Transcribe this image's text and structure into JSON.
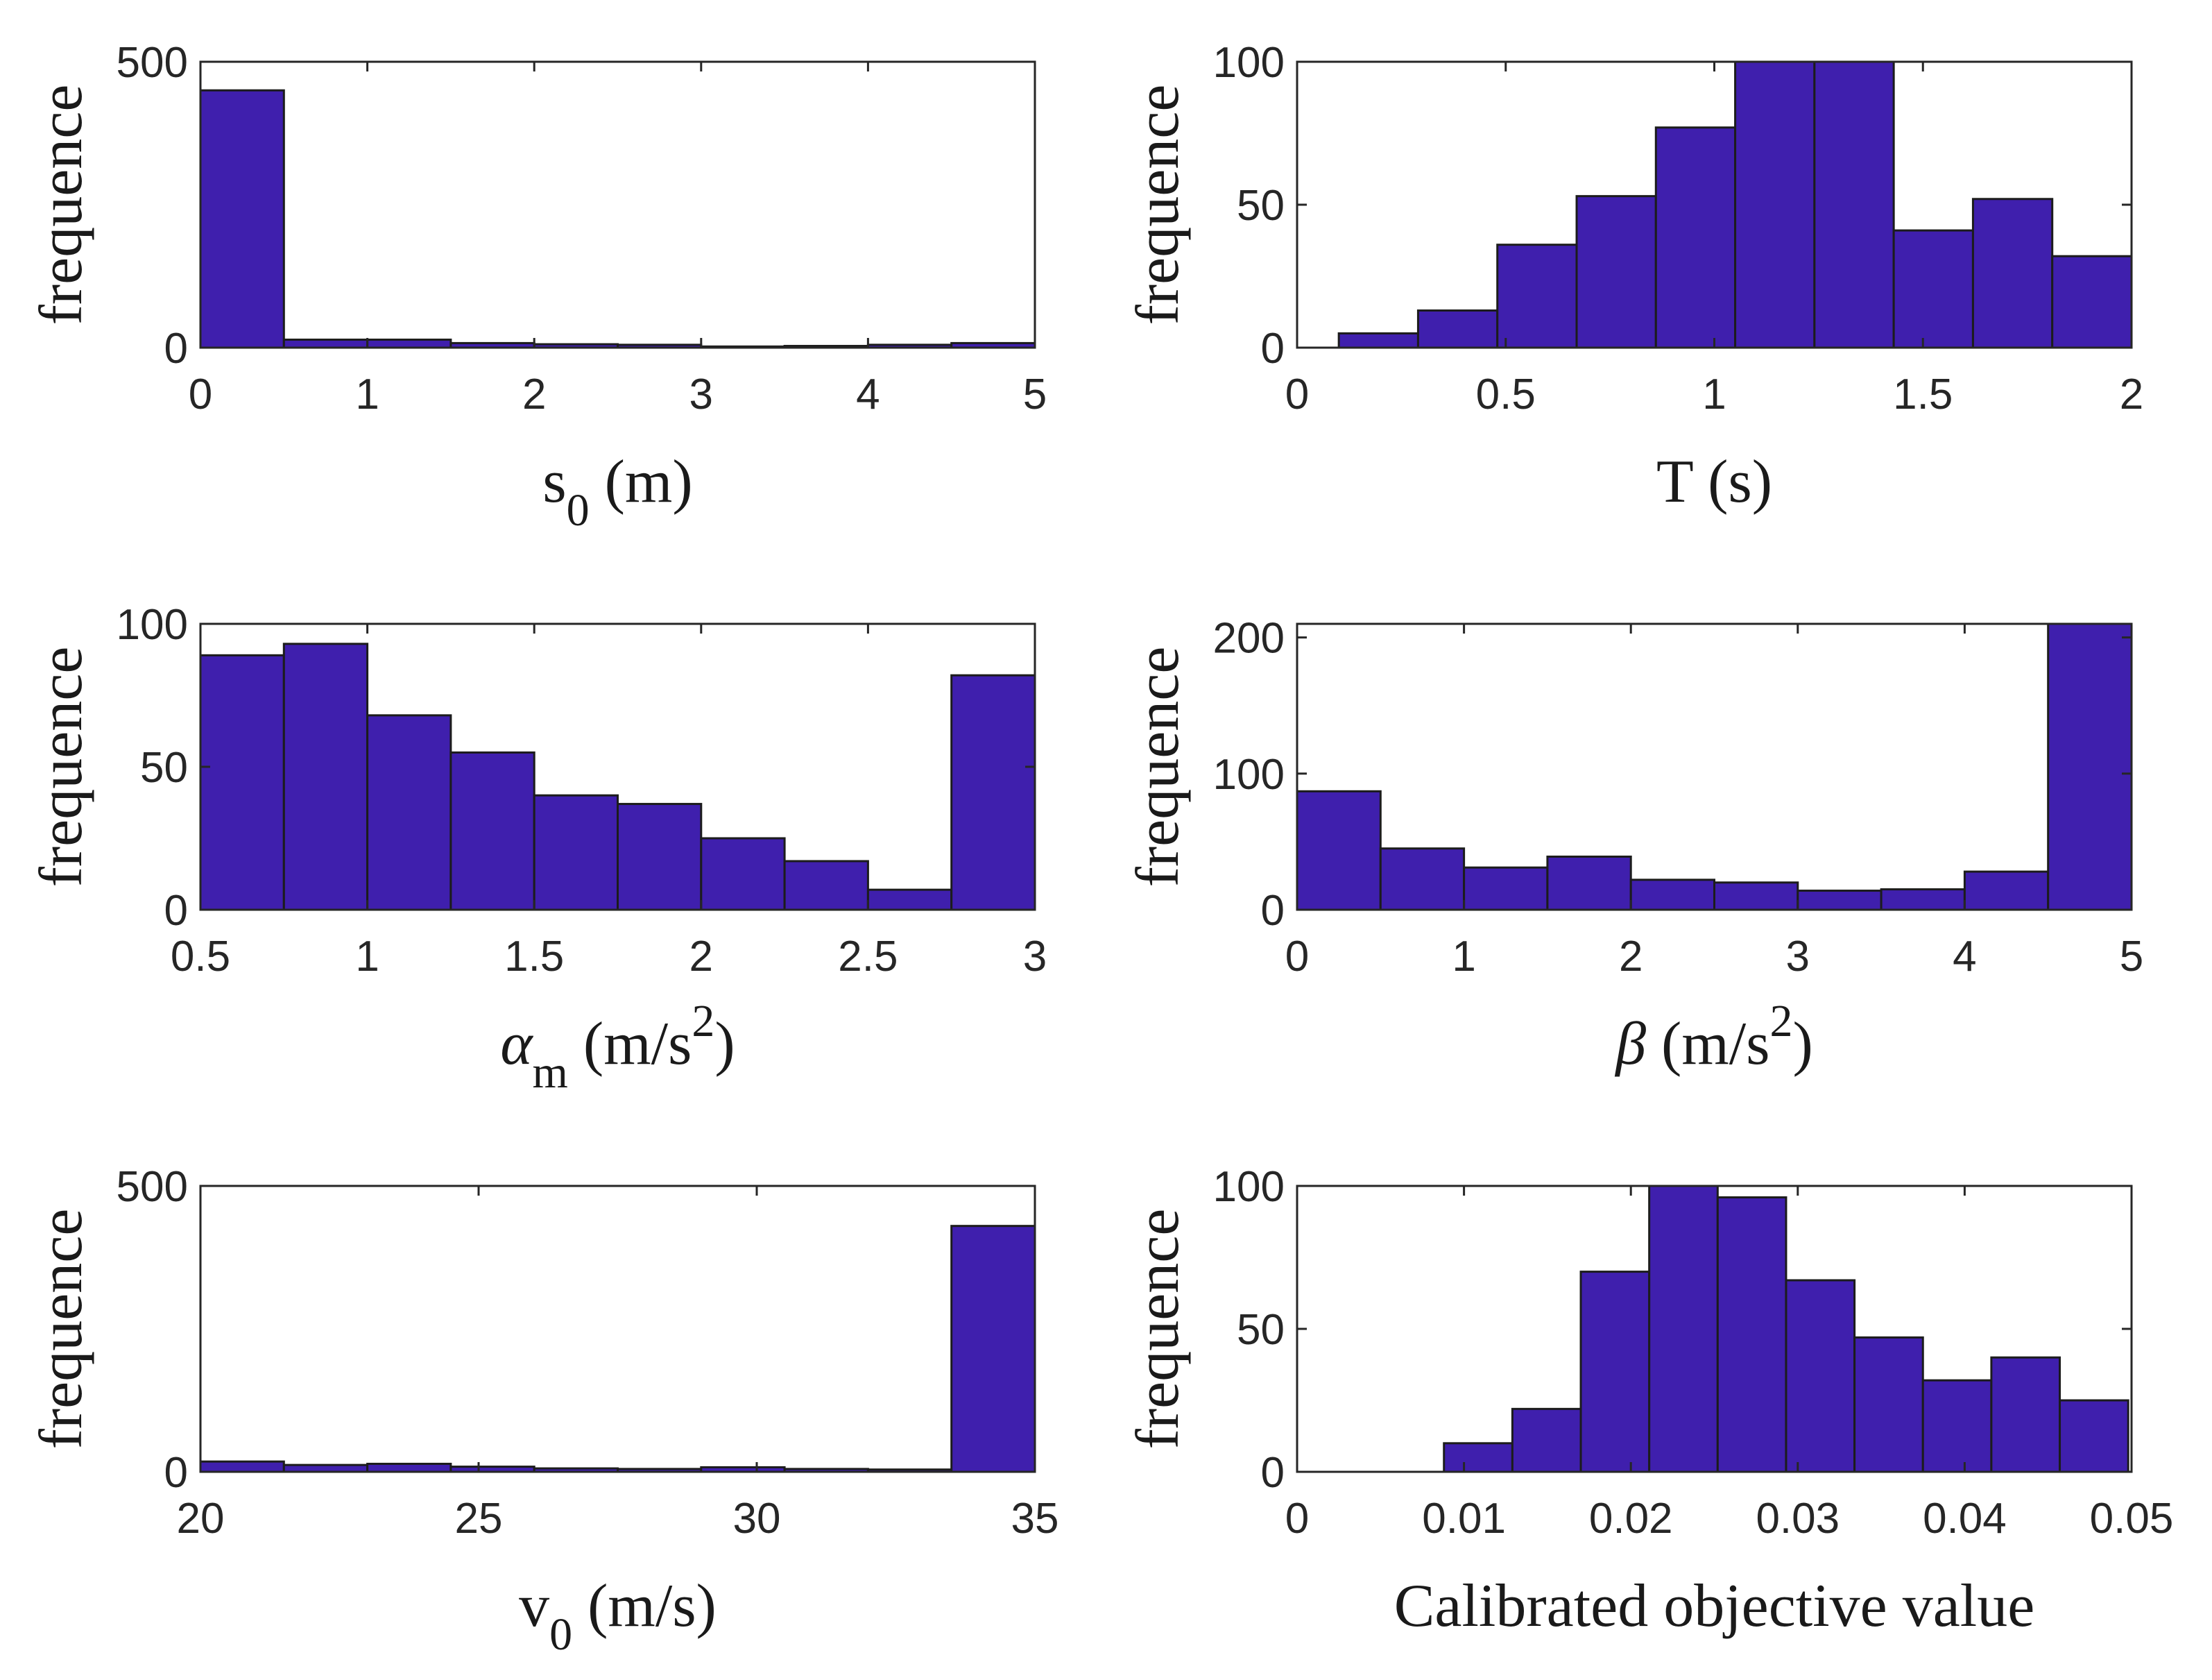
{
  "chart_data": [
    {
      "type": "bar",
      "id": "s0",
      "ylabel": "frequence",
      "xlabel_parts": [
        {
          "t": "s"
        },
        {
          "t": "0",
          "sub": true
        },
        {
          "t": " (m)"
        }
      ],
      "xlim": [
        0,
        5
      ],
      "ylim": [
        0,
        500
      ],
      "xticks": [
        0,
        1,
        2,
        3,
        4,
        5
      ],
      "xtick_labels": [
        "0",
        "1",
        "2",
        "3",
        "4",
        "5"
      ],
      "yticks": [
        0,
        500
      ],
      "ytick_labels": [
        "0",
        "500"
      ],
      "bin_edges": [
        0,
        0.5,
        1,
        1.5,
        2,
        2.5,
        3,
        3.5,
        4,
        4.5,
        5
      ],
      "values": [
        450,
        14,
        14,
        8,
        6,
        5,
        2,
        3,
        5,
        8
      ]
    },
    {
      "type": "bar",
      "id": "T",
      "ylabel": "frequence",
      "xlabel_parts": [
        {
          "t": "T (s)"
        }
      ],
      "xlim": [
        0,
        2
      ],
      "ylim": [
        0,
        100
      ],
      "xticks": [
        0,
        0.5,
        1,
        1.5,
        2
      ],
      "xtick_labels": [
        "0",
        "0.5",
        "1",
        "1.5",
        "2"
      ],
      "yticks": [
        0,
        50,
        100
      ],
      "ytick_labels": [
        "0",
        "50",
        "100"
      ],
      "bin_edges": [
        0.1,
        0.29,
        0.48,
        0.67,
        0.86,
        1.05,
        1.24,
        1.43,
        1.62,
        1.81,
        2.0
      ],
      "values": [
        5,
        13,
        36,
        53,
        77,
        101,
        101,
        41,
        52,
        32
      ]
    },
    {
      "type": "bar",
      "id": "alpha_m",
      "ylabel": "frequence",
      "xlabel_parts": [
        {
          "t": "α",
          "italic": true
        },
        {
          "t": "m",
          "sub": true
        },
        {
          "t": " (m/s"
        },
        {
          "t": "2",
          "sup": true
        },
        {
          "t": ")"
        }
      ],
      "xlim": [
        0.5,
        3
      ],
      "ylim": [
        0,
        100
      ],
      "xticks": [
        0.5,
        1,
        1.5,
        2,
        2.5,
        3
      ],
      "xtick_labels": [
        "0.5",
        "1",
        "1.5",
        "2",
        "2.5",
        "3"
      ],
      "yticks": [
        0,
        50,
        100
      ],
      "ytick_labels": [
        "0",
        "50",
        "100"
      ],
      "bin_edges": [
        0.5,
        0.75,
        1.0,
        1.25,
        1.5,
        1.75,
        2.0,
        2.25,
        2.5,
        2.75,
        3.0
      ],
      "values": [
        89,
        93,
        68,
        55,
        40,
        37,
        25,
        17,
        7,
        82
      ]
    },
    {
      "type": "bar",
      "id": "beta",
      "ylabel": "frequence",
      "xlabel_parts": [
        {
          "t": "β",
          "italic": true
        },
        {
          "t": " (m/s"
        },
        {
          "t": "2",
          "sup": true
        },
        {
          "t": ")"
        }
      ],
      "xlim": [
        0,
        5
      ],
      "ylim": [
        0,
        210
      ],
      "xticks": [
        0,
        1,
        2,
        3,
        4,
        5
      ],
      "xtick_labels": [
        "0",
        "1",
        "2",
        "3",
        "4",
        "5"
      ],
      "yticks": [
        0,
        100,
        200
      ],
      "ytick_labels": [
        "0",
        "100",
        "200"
      ],
      "bin_edges": [
        0,
        0.5,
        1,
        1.5,
        2,
        2.5,
        3,
        3.5,
        4,
        4.5,
        5
      ],
      "values": [
        87,
        45,
        31,
        39,
        22,
        20,
        14,
        15,
        28,
        210
      ]
    },
    {
      "type": "bar",
      "id": "v0",
      "ylabel": "frequence",
      "xlabel_parts": [
        {
          "t": "v"
        },
        {
          "t": "0",
          "sub": true
        },
        {
          "t": " (m/s)"
        }
      ],
      "xlim": [
        20,
        35
      ],
      "ylim": [
        0,
        500
      ],
      "xticks": [
        20,
        25,
        30,
        35
      ],
      "xtick_labels": [
        "20",
        "25",
        "30",
        "35"
      ],
      "yticks": [
        0,
        500
      ],
      "ytick_labels": [
        "0",
        "500"
      ],
      "bin_edges": [
        20,
        21.5,
        23,
        24.5,
        26,
        27.5,
        29,
        30.5,
        32,
        33.5,
        35
      ],
      "values": [
        18,
        12,
        14,
        9,
        6,
        5,
        8,
        5,
        4,
        430
      ]
    },
    {
      "type": "bar",
      "id": "objective",
      "ylabel": "frequence",
      "xlabel_parts": [
        {
          "t": "Calibrated objective value"
        }
      ],
      "xlim": [
        0,
        0.05
      ],
      "ylim": [
        0,
        100
      ],
      "xticks": [
        0,
        0.01,
        0.02,
        0.03,
        0.04,
        0.05
      ],
      "xtick_labels": [
        "0",
        "0.01",
        "0.02",
        "0.03",
        "0.04",
        "0.05"
      ],
      "yticks": [
        0,
        50,
        100
      ],
      "ytick_labels": [
        "0",
        "50",
        "100"
      ],
      "bin_edges": [
        0.0088,
        0.0129,
        0.017,
        0.0211,
        0.0252,
        0.0293,
        0.0334,
        0.0375,
        0.0416,
        0.0457,
        0.0498
      ],
      "values": [
        10,
        22,
        70,
        102,
        96,
        67,
        47,
        32,
        40,
        25
      ]
    }
  ],
  "colors": {
    "bar_fill": "#3f1fad",
    "bar_edge": "#1c1c1c",
    "axis": "#262626"
  }
}
